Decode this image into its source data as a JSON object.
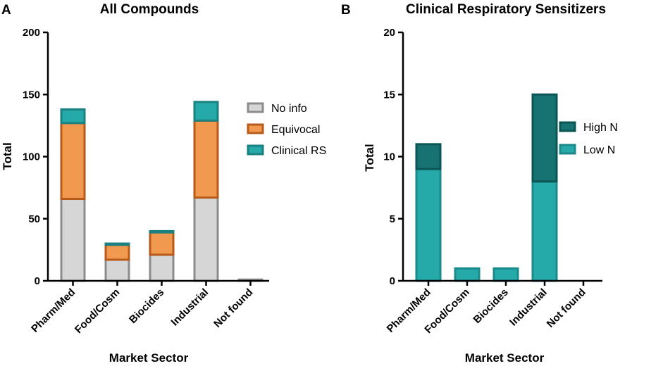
{
  "colors": {
    "no_info_fill": "#d6d6d6",
    "no_info_stroke": "#8c8c8c",
    "equivocal_fill": "#f0994f",
    "equivocal_stroke": "#b85a1a",
    "clinical_fill": "#26a9a9",
    "clinical_stroke": "#1a8080",
    "high_n_fill": "#177272",
    "high_n_stroke": "#0d5656",
    "low_n_fill": "#26a9a9",
    "low_n_stroke": "#1a8a8a"
  },
  "chart_data": [
    {
      "panel": "A",
      "type": "bar",
      "stacked": true,
      "title": "All Compounds",
      "xlabel": "Market Sector",
      "ylabel": "Total",
      "ylim": [
        0,
        200
      ],
      "yticks": [
        0,
        50,
        100,
        150,
        200
      ],
      "categories": [
        "Pharm/Med",
        "Food/Cosm",
        "Biocides",
        "Industrial",
        "Not found"
      ],
      "series": [
        {
          "name": "No info",
          "values": [
            66,
            17,
            21,
            67,
            1
          ]
        },
        {
          "name": "Equivocal",
          "values": [
            61,
            12,
            18,
            62,
            0
          ]
        },
        {
          "name": "Clinical RS",
          "values": [
            11,
            1,
            1,
            15,
            0
          ]
        }
      ],
      "legend": [
        "No info",
        "Equivocal",
        "Clinical RS"
      ],
      "legend_position": "right"
    },
    {
      "panel": "B",
      "type": "bar",
      "stacked": true,
      "title": "Clinical Respiratory Sensitizers",
      "xlabel": "Market Sector",
      "ylabel": "Total",
      "ylim": [
        0,
        20
      ],
      "yticks": [
        0,
        5,
        10,
        15,
        20
      ],
      "categories": [
        "Pharm/Med",
        "Food/Cosm",
        "Biocides",
        "Industrial",
        "Not found"
      ],
      "series": [
        {
          "name": "Low N",
          "values": [
            9,
            1,
            1,
            8,
            0
          ]
        },
        {
          "name": "High N",
          "values": [
            2,
            0,
            0,
            7,
            0
          ]
        }
      ],
      "legend": [
        "High N",
        "Low N"
      ],
      "legend_position": "right"
    }
  ]
}
